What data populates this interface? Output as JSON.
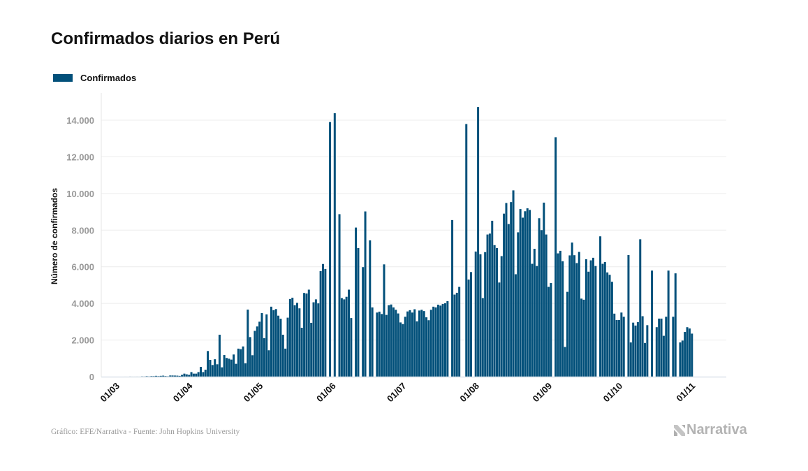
{
  "title": "Confirmados diarios en Perú",
  "footer": "Gráfico: EFE/Narrativa - Fuente: John Hopkins University",
  "logo_text": "Narrativa",
  "colors": {
    "bar": "#02507a",
    "grid": "#ececec",
    "axis": "#dde3ea",
    "tick_text": "#999999"
  },
  "chart_data": {
    "type": "bar",
    "title": "Confirmados diarios en Perú",
    "xlabel": "",
    "ylabel": "Número de confirmados",
    "legend": {
      "entries": [
        "Confirmados"
      ],
      "placement": "top-left"
    },
    "grid": true,
    "ylim": [
      0,
      15500
    ],
    "yticks": [
      0,
      2000,
      4000,
      6000,
      8000,
      10000,
      12000,
      14000
    ],
    "ytick_labels": [
      "0",
      "2.000",
      "4.000",
      "6.000",
      "8.000",
      "10.000",
      "12.000",
      "14.000"
    ],
    "xtick_labels": [
      "01/03",
      "01/04",
      "01/05",
      "01/06",
      "01/07",
      "01/08",
      "01/09",
      "01/10",
      "01/11"
    ],
    "series": [
      {
        "name": "Confirmados"
      }
    ],
    "x": [
      "01/03",
      "02/03",
      "03/03",
      "04/03",
      "05/03",
      "06/03",
      "07/03",
      "08/03",
      "09/03",
      "10/03",
      "11/03",
      "12/03",
      "13/03",
      "14/03",
      "15/03",
      "16/03",
      "17/03",
      "18/03",
      "19/03",
      "20/03",
      "21/03",
      "22/03",
      "23/03",
      "24/03",
      "25/03",
      "26/03",
      "27/03",
      "28/03",
      "29/03",
      "30/03",
      "31/03",
      "01/04",
      "02/04",
      "03/04",
      "04/04",
      "05/04",
      "06/04",
      "07/04",
      "08/04",
      "09/04",
      "10/04",
      "11/04",
      "12/04",
      "13/04",
      "14/04",
      "15/04",
      "16/04",
      "17/04",
      "18/04",
      "19/04",
      "20/04",
      "21/04",
      "22/04",
      "23/04",
      "24/04",
      "25/04",
      "26/04",
      "27/04",
      "28/04",
      "29/04",
      "30/04",
      "01/05",
      "02/05",
      "03/05",
      "04/05",
      "05/05",
      "06/05",
      "07/05",
      "08/05",
      "09/05",
      "10/05",
      "11/05",
      "12/05",
      "13/05",
      "14/05",
      "15/05",
      "16/05",
      "17/05",
      "18/05",
      "19/05",
      "20/05",
      "21/05",
      "22/05",
      "23/05",
      "24/05",
      "25/05",
      "26/05",
      "27/05",
      "28/05",
      "29/05",
      "30/05",
      "31/05",
      "01/06",
      "02/06",
      "03/06",
      "04/06",
      "05/06",
      "06/06",
      "07/06",
      "08/06",
      "09/06",
      "10/06",
      "11/06",
      "12/06",
      "13/06",
      "14/06",
      "15/06",
      "16/06",
      "17/06",
      "18/06",
      "19/06",
      "20/06",
      "21/06",
      "22/06",
      "23/06",
      "24/06",
      "25/06",
      "26/06",
      "27/06",
      "28/06",
      "29/06",
      "30/06",
      "01/07",
      "02/07",
      "03/07",
      "04/07",
      "05/07",
      "06/07",
      "07/07",
      "08/07",
      "09/07",
      "10/07",
      "11/07",
      "12/07",
      "13/07",
      "14/07",
      "15/07",
      "16/07",
      "17/07",
      "18/07",
      "19/07",
      "20/07",
      "21/07",
      "22/07",
      "23/07",
      "24/07",
      "25/07",
      "26/07",
      "27/07",
      "28/07",
      "29/07",
      "30/07",
      "31/07",
      "01/08",
      "02/08",
      "03/08",
      "04/08",
      "05/08",
      "06/08",
      "07/08",
      "08/08",
      "09/08",
      "10/08",
      "11/08",
      "12/08",
      "13/08",
      "14/08",
      "15/08",
      "16/08",
      "17/08",
      "18/08",
      "19/08",
      "20/08",
      "21/08",
      "22/08",
      "23/08",
      "24/08",
      "25/08",
      "26/08",
      "27/08",
      "28/08",
      "29/08",
      "30/08",
      "31/08",
      "01/09",
      "02/09",
      "03/09",
      "04/09",
      "05/09",
      "06/09",
      "07/09",
      "08/09",
      "09/09",
      "10/09",
      "11/09",
      "12/09",
      "13/09",
      "14/09",
      "15/09",
      "16/09",
      "17/09",
      "18/09",
      "19/09",
      "20/09",
      "21/09",
      "22/09",
      "23/09",
      "24/09",
      "25/09",
      "26/09",
      "27/09",
      "28/09",
      "29/09",
      "30/09",
      "01/10",
      "02/10",
      "03/10",
      "04/10",
      "05/10",
      "06/10",
      "07/10",
      "08/10",
      "09/10",
      "10/10",
      "11/10",
      "12/10",
      "13/10",
      "14/10",
      "15/10",
      "16/10",
      "17/10",
      "18/10",
      "19/10",
      "20/10",
      "21/10",
      "22/10",
      "23/10",
      "24/10",
      "25/10",
      "26/10",
      "27/10",
      "28/10",
      "29/10",
      "30/10",
      "31/10",
      "01/11",
      "02/11"
    ],
    "values": [
      0,
      0,
      0,
      0,
      0,
      1,
      0,
      5,
      2,
      2,
      3,
      2,
      16,
      10,
      28,
      15,
      31,
      28,
      45,
      29,
      45,
      55,
      32,
      21,
      64,
      63,
      59,
      55,
      43,
      98,
      165,
      127,
      100,
      250,
      165,
      165,
      250,
      535,
      250,
      380,
      1400,
      915,
      636,
      950,
      675,
      2290,
      510,
      1180,
      1020,
      980,
      930,
      1210,
      700,
      1530,
      1500,
      1650,
      730,
      3660,
      2160,
      1170,
      2500,
      2740,
      3000,
      3470,
      2100,
      3400,
      1440,
      3820,
      3630,
      3690,
      3330,
      3160,
      2290,
      1530,
      3220,
      4240,
      4310,
      3900,
      4030,
      3730,
      2670,
      4570,
      4540,
      4750,
      2940,
      4060,
      4220,
      4000,
      5760,
      6150,
      5880,
      0,
      13900,
      0,
      14380,
      0,
      8870,
      4290,
      4220,
      4360,
      4750,
      3200,
      0,
      8140,
      7020,
      0,
      5980,
      9020,
      0,
      7440,
      3780,
      0,
      3500,
      3550,
      3420,
      6130,
      3370,
      3900,
      3940,
      3780,
      3650,
      3450,
      2960,
      2870,
      3270,
      3560,
      3630,
      3500,
      3680,
      3020,
      3610,
      3650,
      3580,
      3240,
      3080,
      3650,
      3820,
      3780,
      3930,
      3880,
      3970,
      4010,
      4120,
      0,
      8550,
      4480,
      4580,
      4900,
      0,
      0,
      13790,
      5300,
      5710,
      0,
      6830,
      14720,
      6680,
      4290,
      6800,
      7760,
      7810,
      8510,
      7180,
      7020,
      5140,
      6580,
      8900,
      9480,
      8330,
      9530,
      10170,
      5590,
      7880,
      9150,
      8680,
      9030,
      9190,
      9100,
      6160,
      6980,
      6040,
      8650,
      8000,
      9500,
      7760,
      4900,
      5110,
      0,
      13070,
      6730,
      6870,
      6300,
      1620,
      4630,
      6620,
      7320,
      6630,
      6200,
      6810,
      4260,
      4200,
      6410,
      5730,
      6350,
      6490,
      6040,
      0,
      7660,
      6160,
      6260,
      5690,
      5560,
      5180,
      3440,
      3090,
      3090,
      3500,
      3270,
      0,
      6640,
      1870,
      2950,
      2790,
      2980,
      7500,
      3300,
      1840,
      2810,
      0,
      5790,
      0,
      2700,
      3170,
      3170,
      2230,
      3270,
      5790,
      0,
      3270,
      5640,
      0,
      1870,
      1970,
      2440,
      2700,
      2630,
      2350
    ]
  }
}
